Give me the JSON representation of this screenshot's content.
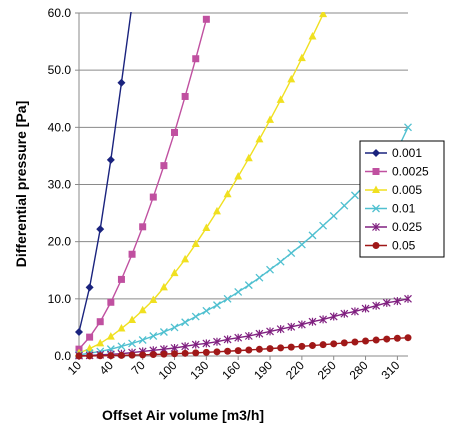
{
  "chart_data": {
    "type": "line",
    "xlabel": "Offset Air volume [m3/h]",
    "ylabel": "Differential pressure [Pa]",
    "xlim": [
      10,
      320
    ],
    "ylim": [
      0,
      60
    ],
    "x_ticks": [
      "10",
      "40",
      "70",
      "100",
      "130",
      "160",
      "190",
      "220",
      "250",
      "280",
      "310"
    ],
    "y_ticks": [
      "0.0",
      "10.0",
      "20.0",
      "30.0",
      "40.0",
      "50.0",
      "60.0"
    ],
    "grid": "horizontal",
    "legend_position": "right",
    "series": [
      {
        "name": "0.001",
        "color": "#1a237e",
        "marker": "diamond",
        "x": [
          10,
          20,
          30,
          40,
          50,
          60
        ],
        "y": [
          4.2,
          12.0,
          22.2,
          34.3,
          47.8,
          61.5
        ]
      },
      {
        "name": "0.0025",
        "color": "#c050a0",
        "marker": "square",
        "x": [
          10,
          20,
          30,
          40,
          50,
          60,
          70,
          80,
          90,
          100,
          110,
          120,
          130
        ],
        "y": [
          1.2,
          3.3,
          6.0,
          9.4,
          13.4,
          17.8,
          22.6,
          27.8,
          33.3,
          39.1,
          45.4,
          52.0,
          58.9
        ]
      },
      {
        "name": "0.005",
        "color": "#f0e020",
        "marker": "triangle",
        "x": [
          10,
          20,
          30,
          40,
          50,
          60,
          70,
          80,
          90,
          100,
          110,
          120,
          130,
          140,
          150,
          160,
          170,
          180,
          190,
          200,
          210,
          220,
          230,
          240,
          250
        ],
        "y": [
          0.5,
          1.3,
          2.2,
          3.4,
          4.8,
          6.3,
          8.0,
          9.8,
          12.0,
          14.5,
          16.9,
          19.6,
          22.4,
          25.3,
          28.3,
          31.4,
          34.6,
          37.9,
          41.3,
          44.8,
          48.4,
          52.1,
          55.9,
          59.8,
          63.8
        ]
      },
      {
        "name": "0.01",
        "color": "#50c0d0",
        "marker": "x",
        "x": [
          10,
          20,
          30,
          40,
          50,
          60,
          70,
          80,
          90,
          100,
          110,
          120,
          130,
          140,
          150,
          160,
          170,
          180,
          190,
          200,
          210,
          220,
          230,
          240,
          250,
          260,
          270,
          280,
          290,
          300,
          310,
          320
        ],
        "y": [
          0.2,
          0.5,
          0.8,
          1.2,
          1.7,
          2.2,
          2.8,
          3.5,
          4.2,
          5.0,
          5.9,
          6.9,
          7.9,
          8.9,
          10.0,
          11.2,
          12.4,
          13.7,
          15.1,
          16.5,
          18.0,
          19.5,
          21.1,
          22.8,
          24.5,
          26.3,
          28.1,
          30.0,
          32.0,
          34.0,
          36.1,
          40.0
        ]
      },
      {
        "name": "0.025",
        "color": "#802080",
        "marker": "star",
        "x": [
          10,
          20,
          30,
          40,
          50,
          60,
          70,
          80,
          90,
          100,
          110,
          120,
          130,
          140,
          150,
          160,
          170,
          180,
          190,
          200,
          210,
          220,
          230,
          240,
          250,
          260,
          270,
          280,
          290,
          300,
          310,
          320
        ],
        "y": [
          0.05,
          0.1,
          0.2,
          0.3,
          0.4,
          0.6,
          0.8,
          1.0,
          1.2,
          1.4,
          1.7,
          2.0,
          2.2,
          2.5,
          2.9,
          3.2,
          3.5,
          3.9,
          4.3,
          4.7,
          5.1,
          5.5,
          6.0,
          6.4,
          6.9,
          7.4,
          7.8,
          8.3,
          8.8,
          9.3,
          9.6,
          10.0
        ]
      },
      {
        "name": "0.05",
        "color": "#a01818",
        "marker": "circle",
        "x": [
          10,
          20,
          30,
          40,
          50,
          60,
          70,
          80,
          90,
          100,
          110,
          120,
          130,
          140,
          150,
          160,
          170,
          180,
          190,
          200,
          210,
          220,
          230,
          240,
          250,
          260,
          270,
          280,
          290,
          300,
          310,
          320
        ],
        "y": [
          0.0,
          0.02,
          0.04,
          0.07,
          0.11,
          0.15,
          0.2,
          0.26,
          0.33,
          0.4,
          0.47,
          0.55,
          0.64,
          0.73,
          0.83,
          0.94,
          1.05,
          1.17,
          1.29,
          1.42,
          1.55,
          1.69,
          1.83,
          1.98,
          2.13,
          2.29,
          2.45,
          2.62,
          2.79,
          2.96,
          3.1,
          3.2
        ]
      }
    ]
  }
}
